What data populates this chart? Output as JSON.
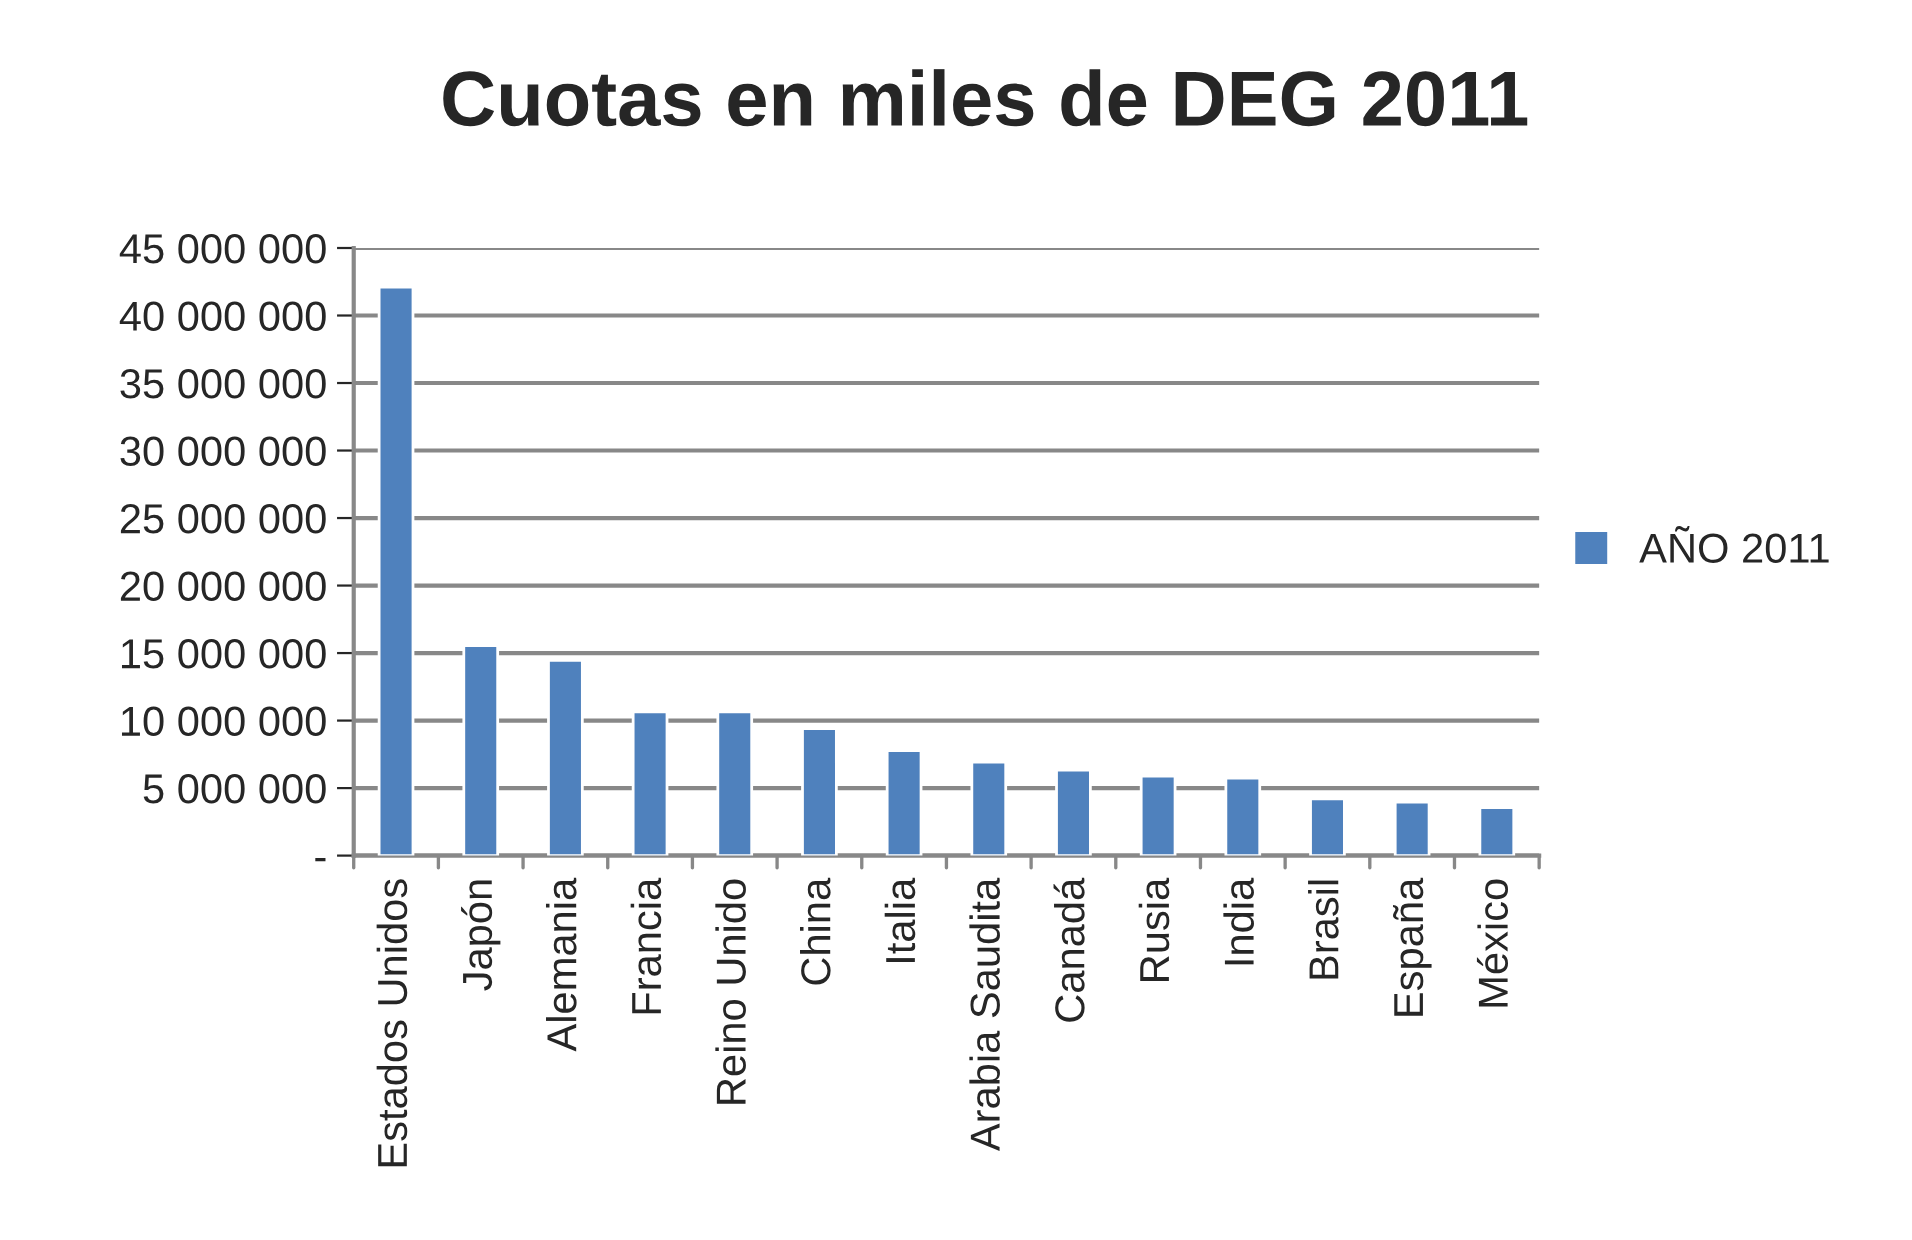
{
  "chart_data": {
    "type": "bar",
    "title": "Cuotas en miles de DEG 2011",
    "categories": [
      "Estados Unidos",
      "Japón",
      "Alemania",
      "Francia",
      "Reino Unido",
      "China",
      "Italia",
      "Arabia Saudita",
      "Canadá",
      "Rusia",
      "India",
      "Brasil",
      "España",
      "México"
    ],
    "series": [
      {
        "name": "AÑO 2011",
        "color": "#4f81bd",
        "values": [
          42100000,
          15550000,
          14460000,
          10640000,
          10640000,
          9410000,
          7770000,
          6930000,
          6340000,
          5890000,
          5740000,
          4210000,
          3960000,
          3560000
        ]
      }
    ],
    "ylim": [
      0,
      45000000
    ],
    "yticks": [
      {
        "value": 0,
        "label": "-"
      },
      {
        "value": 5000000,
        "label": "5 000 000"
      },
      {
        "value": 10000000,
        "label": "10 000 000"
      },
      {
        "value": 15000000,
        "label": "15 000 000"
      },
      {
        "value": 20000000,
        "label": "20 000 000"
      },
      {
        "value": 25000000,
        "label": "25 000 000"
      },
      {
        "value": 30000000,
        "label": "30 000 000"
      },
      {
        "value": 35000000,
        "label": "35 000 000"
      },
      {
        "value": 40000000,
        "label": "40 000 000"
      },
      {
        "value": 45000000,
        "label": "45 000 000"
      }
    ],
    "grid": "y",
    "legend": "right"
  }
}
